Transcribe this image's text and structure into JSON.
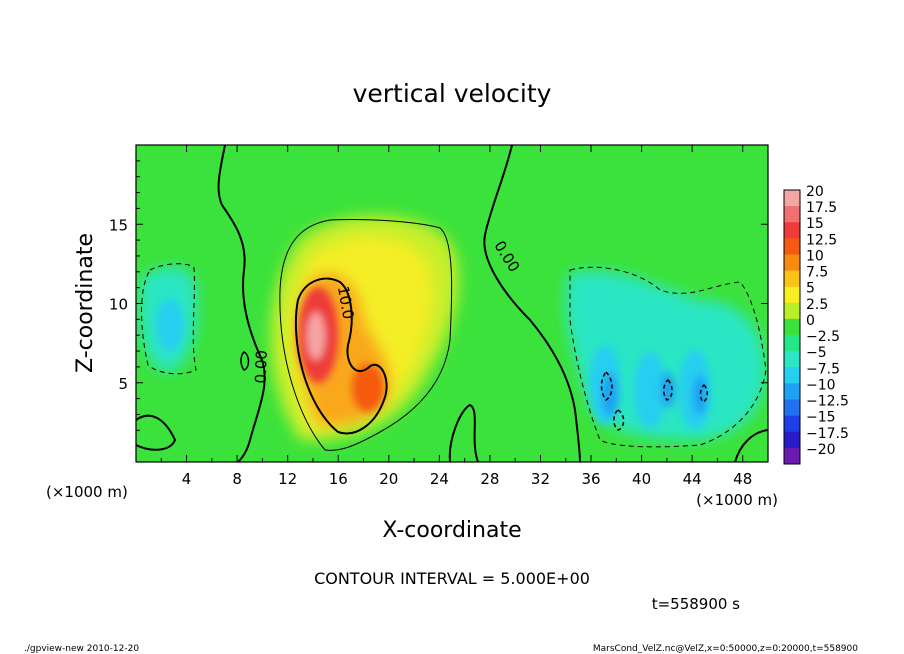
{
  "chart_data": {
    "type": "heatmap",
    "title": "vertical velocity",
    "xlabel": "X-coordinate",
    "ylabel": "Z-coordinate",
    "x_unit_left": "(×1000 m)",
    "x_unit_right": "(×1000 m)",
    "xlim": [
      0,
      50
    ],
    "ylim": [
      0,
      20
    ],
    "x_ticks": [
      4,
      8,
      12,
      16,
      20,
      24,
      28,
      32,
      36,
      40,
      44,
      48
    ],
    "y_ticks": [
      5,
      10,
      15
    ],
    "contour_labels": [
      {
        "text": "0.00",
        "x": 10.3,
        "y": 6,
        "angle": -88
      },
      {
        "text": "10.0",
        "x": 16.2,
        "y": 10,
        "angle": 80
      },
      {
        "text": "0.00",
        "x": 29.0,
        "y": 12.8,
        "angle": 58
      }
    ],
    "colorbar": {
      "labels": [
        "20",
        "17.5",
        "15",
        "12.5",
        "10",
        "7.5",
        "5",
        "2.5",
        "0",
        "−2.5",
        "−5",
        "−7.5",
        "−10",
        "−12.5",
        "−15",
        "−17.5",
        "−20"
      ],
      "colors": [
        "#f4a6a6",
        "#f07070",
        "#ee3a3a",
        "#f55a10",
        "#f88a10",
        "#fbc21a",
        "#f7ef22",
        "#b8ef28",
        "#3ce23c",
        "#26e68a",
        "#2ce6c4",
        "#26cef0",
        "#1fa2f3",
        "#2072f0",
        "#1e3fe6",
        "#2a1cc8",
        "#6a1ab0"
      ]
    },
    "contour_interval_text": "CONTOUR INTERVAL = 5.000E+00",
    "time_text": "t=558900 s"
  },
  "footer": {
    "left": "./gpview-new  2010-12-20",
    "right": "MarsCond_VelZ.nc@VelZ,x=0:50000,z=0:20000,t=558900"
  },
  "colors": {
    "background_field": "#3ce23c",
    "updraft_core": "#f0a0a0",
    "downdraft": "#26cef0"
  }
}
